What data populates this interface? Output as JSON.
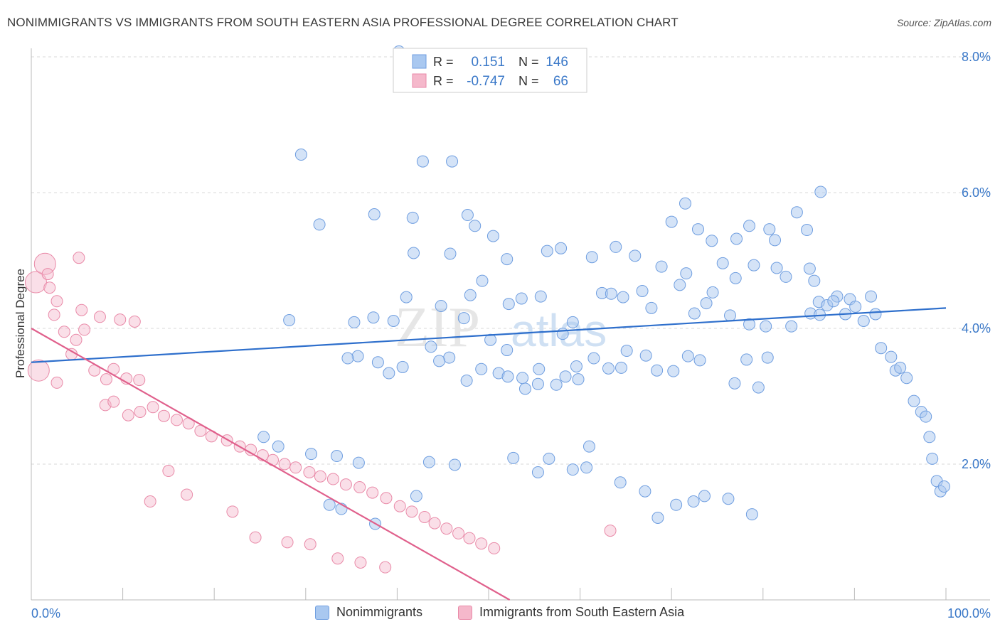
{
  "header": {
    "title": "NONIMMIGRANTS VS IMMIGRANTS FROM SOUTH EASTERN ASIA PROFESSIONAL DEGREE CORRELATION CHART",
    "source": "Source: ZipAtlas.com"
  },
  "watermark": {
    "zip": "ZIP",
    "atlas": "atlas"
  },
  "colors": {
    "blue_fill": "#a9c8f0",
    "blue_stroke": "#6f9ee0",
    "blue_line": "#2e6fcc",
    "pink_fill": "#f5b8cb",
    "pink_stroke": "#e98aa8",
    "pink_line": "#e0608c",
    "axis_text": "#3a78c8",
    "grid": "#d9d9d9"
  },
  "stats_legend": {
    "rows": [
      {
        "r_label": "R =",
        "r_value": "0.151",
        "n_label": "N =",
        "n_value": "146"
      },
      {
        "r_label": "R =",
        "r_value": "-0.747",
        "n_label": "N =",
        "n_value": "66"
      }
    ]
  },
  "bottom_legend": [
    {
      "label": "Nonimmigrants"
    },
    {
      "label": "Immigrants from South Eastern Asia"
    }
  ],
  "chart_data": {
    "type": "scatter",
    "title": "NONIMMIGRANTS VS IMMIGRANTS FROM SOUTH EASTERN ASIA PROFESSIONAL DEGREE CORRELATION CHART",
    "xlabel": "",
    "ylabel": "Professional Degree",
    "xlim": [
      0,
      100
    ],
    "ylim": [
      0,
      8.0
    ],
    "x_tick_labels": [
      "0.0%",
      "100.0%"
    ],
    "y_ticks": [
      2.0,
      4.0,
      6.0,
      8.0
    ],
    "y_tick_labels": [
      "2.0%",
      "4.0%",
      "6.0%",
      "8.0%"
    ],
    "grid": true,
    "series": [
      {
        "name": "Nonimmigrants",
        "trend": {
          "x": [
            0,
            100
          ],
          "y": [
            3.5,
            4.3
          ]
        },
        "points": [
          [
            40.2,
            8.08
          ],
          [
            29.5,
            6.56
          ],
          [
            42.8,
            6.46
          ],
          [
            46.0,
            6.46
          ],
          [
            41.7,
            5.63
          ],
          [
            31.5,
            5.53
          ],
          [
            37.5,
            5.68
          ],
          [
            47.7,
            5.67
          ],
          [
            48.5,
            5.51
          ],
          [
            50.5,
            5.36
          ],
          [
            41.8,
            5.11
          ],
          [
            45.8,
            5.1
          ],
          [
            52.0,
            5.02
          ],
          [
            56.4,
            5.14
          ],
          [
            57.9,
            5.18
          ],
          [
            61.3,
            5.05
          ],
          [
            63.9,
            5.2
          ],
          [
            66.0,
            5.07
          ],
          [
            70.0,
            5.57
          ],
          [
            71.5,
            5.84
          ],
          [
            72.9,
            5.46
          ],
          [
            74.4,
            5.29
          ],
          [
            77.1,
            5.32
          ],
          [
            78.5,
            5.51
          ],
          [
            80.7,
            5.46
          ],
          [
            81.3,
            5.3
          ],
          [
            83.7,
            5.71
          ],
          [
            84.8,
            5.45
          ],
          [
            86.3,
            6.01
          ],
          [
            68.9,
            4.91
          ],
          [
            71.6,
            4.81
          ],
          [
            75.6,
            4.96
          ],
          [
            77.0,
            4.74
          ],
          [
            79.0,
            4.93
          ],
          [
            81.5,
            4.89
          ],
          [
            82.5,
            4.76
          ],
          [
            85.1,
            4.88
          ],
          [
            85.6,
            4.7
          ],
          [
            86.1,
            4.39
          ],
          [
            87.0,
            4.34
          ],
          [
            88.1,
            4.47
          ],
          [
            89.0,
            4.21
          ],
          [
            89.5,
            4.43
          ],
          [
            90.1,
            4.32
          ],
          [
            91.0,
            4.11
          ],
          [
            91.8,
            4.47
          ],
          [
            92.3,
            4.21
          ],
          [
            92.9,
            3.71
          ],
          [
            94.0,
            3.58
          ],
          [
            94.5,
            3.38
          ],
          [
            95.0,
            3.42
          ],
          [
            95.7,
            3.27
          ],
          [
            96.5,
            2.93
          ],
          [
            97.3,
            2.77
          ],
          [
            97.8,
            2.7
          ],
          [
            98.2,
            2.4
          ],
          [
            98.5,
            2.08
          ],
          [
            99.0,
            1.75
          ],
          [
            99.4,
            1.6
          ],
          [
            99.8,
            1.67
          ],
          [
            28.2,
            4.12
          ],
          [
            35.3,
            4.09
          ],
          [
            37.4,
            4.16
          ],
          [
            39.6,
            4.11
          ],
          [
            41.0,
            4.46
          ],
          [
            44.8,
            4.33
          ],
          [
            47.3,
            4.15
          ],
          [
            48.0,
            4.49
          ],
          [
            49.3,
            4.7
          ],
          [
            52.2,
            4.36
          ],
          [
            53.6,
            4.44
          ],
          [
            55.7,
            4.47
          ],
          [
            59.2,
            4.09
          ],
          [
            62.4,
            4.52
          ],
          [
            63.4,
            4.51
          ],
          [
            64.7,
            4.46
          ],
          [
            66.8,
            4.55
          ],
          [
            67.8,
            4.3
          ],
          [
            70.9,
            4.64
          ],
          [
            72.5,
            4.22
          ],
          [
            73.8,
            4.37
          ],
          [
            74.5,
            4.53
          ],
          [
            76.4,
            4.19
          ],
          [
            78.5,
            4.06
          ],
          [
            80.3,
            4.03
          ],
          [
            83.1,
            4.03
          ],
          [
            85.2,
            4.22
          ],
          [
            86.2,
            4.2
          ],
          [
            87.7,
            4.4
          ],
          [
            40.6,
            3.43
          ],
          [
            35.7,
            3.59
          ],
          [
            39.1,
            3.34
          ],
          [
            45.7,
            3.57
          ],
          [
            47.6,
            3.23
          ],
          [
            50.2,
            3.83
          ],
          [
            51.1,
            3.34
          ],
          [
            52.1,
            3.29
          ],
          [
            53.7,
            3.27
          ],
          [
            55.5,
            3.4
          ],
          [
            57.4,
            3.17
          ],
          [
            58.4,
            3.29
          ],
          [
            59.6,
            3.44
          ],
          [
            61.5,
            3.56
          ],
          [
            63.1,
            3.41
          ],
          [
            64.5,
            3.42
          ],
          [
            65.1,
            3.67
          ],
          [
            67.2,
            3.6
          ],
          [
            68.4,
            3.38
          ],
          [
            70.2,
            3.37
          ],
          [
            71.8,
            3.59
          ],
          [
            73.1,
            3.53
          ],
          [
            76.9,
            3.19
          ],
          [
            78.2,
            3.54
          ],
          [
            79.5,
            3.13
          ],
          [
            80.5,
            3.57
          ],
          [
            58.1,
            3.92
          ],
          [
            52.0,
            3.68
          ],
          [
            43.7,
            3.73
          ],
          [
            34.6,
            3.56
          ],
          [
            37.9,
            3.5
          ],
          [
            44.6,
            3.52
          ],
          [
            54.0,
            3.11
          ],
          [
            55.4,
            3.18
          ],
          [
            59.8,
            3.25
          ],
          [
            49.2,
            3.4
          ],
          [
            25.4,
            2.4
          ],
          [
            27.0,
            2.26
          ],
          [
            30.6,
            2.15
          ],
          [
            33.4,
            2.12
          ],
          [
            35.8,
            2.02
          ],
          [
            43.5,
            2.03
          ],
          [
            46.3,
            1.99
          ],
          [
            52.7,
            2.09
          ],
          [
            55.4,
            1.88
          ],
          [
            56.6,
            2.08
          ],
          [
            59.2,
            1.92
          ],
          [
            60.7,
            1.95
          ],
          [
            64.4,
            1.73
          ],
          [
            67.1,
            1.6
          ],
          [
            70.5,
            1.4
          ],
          [
            72.4,
            1.45
          ],
          [
            73.6,
            1.53
          ],
          [
            76.2,
            1.49
          ],
          [
            78.8,
            1.26
          ],
          [
            68.5,
            1.21
          ],
          [
            32.6,
            1.4
          ],
          [
            33.9,
            1.34
          ],
          [
            37.6,
            1.12
          ],
          [
            61.0,
            2.26
          ],
          [
            42.1,
            1.53
          ]
        ]
      },
      {
        "name": "Immigrants from South Eastern Asia",
        "trend": {
          "x": [
            0,
            52.3
          ],
          "y": [
            4.0,
            0.0
          ]
        },
        "points": [
          [
            0.5,
            4.68
          ],
          [
            1.5,
            4.95
          ],
          [
            2.0,
            4.6
          ],
          [
            2.8,
            4.4
          ],
          [
            1.8,
            4.8
          ],
          [
            2.5,
            4.2
          ],
          [
            5.5,
            4.27
          ],
          [
            4.9,
            3.83
          ],
          [
            3.6,
            3.95
          ],
          [
            5.8,
            3.98
          ],
          [
            7.5,
            4.17
          ],
          [
            9.7,
            4.13
          ],
          [
            11.3,
            4.1
          ],
          [
            4.4,
            3.62
          ],
          [
            6.9,
            3.38
          ],
          [
            8.2,
            3.25
          ],
          [
            9.0,
            3.4
          ],
          [
            10.4,
            3.26
          ],
          [
            11.8,
            3.24
          ],
          [
            8.1,
            2.87
          ],
          [
            9.0,
            2.92
          ],
          [
            10.6,
            2.72
          ],
          [
            11.9,
            2.77
          ],
          [
            13.3,
            2.84
          ],
          [
            14.5,
            2.71
          ],
          [
            15.9,
            2.65
          ],
          [
            17.2,
            2.6
          ],
          [
            18.5,
            2.49
          ],
          [
            19.7,
            2.41
          ],
          [
            21.4,
            2.35
          ],
          [
            22.8,
            2.26
          ],
          [
            24.0,
            2.21
          ],
          [
            25.3,
            2.13
          ],
          [
            26.4,
            2.06
          ],
          [
            27.7,
            2.0
          ],
          [
            28.9,
            1.95
          ],
          [
            30.4,
            1.88
          ],
          [
            31.6,
            1.82
          ],
          [
            33.0,
            1.78
          ],
          [
            34.4,
            1.7
          ],
          [
            35.9,
            1.66
          ],
          [
            37.3,
            1.58
          ],
          [
            38.8,
            1.5
          ],
          [
            40.3,
            1.38
          ],
          [
            41.6,
            1.3
          ],
          [
            43.0,
            1.22
          ],
          [
            44.1,
            1.13
          ],
          [
            45.4,
            1.05
          ],
          [
            46.7,
            0.98
          ],
          [
            47.9,
            0.91
          ],
          [
            49.2,
            0.83
          ],
          [
            50.6,
            0.76
          ],
          [
            15.0,
            1.9
          ],
          [
            13.0,
            1.45
          ],
          [
            17.0,
            1.55
          ],
          [
            22.0,
            1.3
          ],
          [
            24.5,
            0.92
          ],
          [
            28.0,
            0.85
          ],
          [
            30.5,
            0.82
          ],
          [
            33.5,
            0.61
          ],
          [
            36.0,
            0.55
          ],
          [
            38.7,
            0.48
          ],
          [
            63.3,
            1.02
          ],
          [
            2.8,
            3.2
          ],
          [
            0.8,
            3.38
          ],
          [
            5.2,
            5.04
          ]
        ]
      }
    ]
  }
}
